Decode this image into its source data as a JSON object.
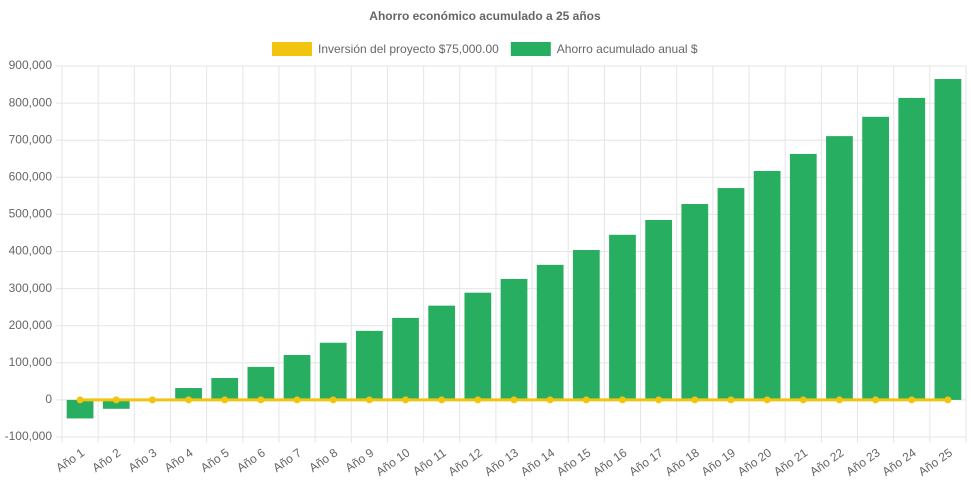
{
  "chart_data": {
    "type": "bar",
    "title": "Ahorro económico acumulado a 25 años",
    "categories": [
      "Año 1",
      "Año 2",
      "Año 3",
      "Año 4",
      "Año 5",
      "Año 6",
      "Año 7",
      "Año 8",
      "Año 9",
      "Año 10",
      "Año 11",
      "Año 12",
      "Año 13",
      "Año 14",
      "Año 15",
      "Año 16",
      "Año 17",
      "Año 18",
      "Año 19",
      "Año 20",
      "Año 21",
      "Año 22",
      "Año 23",
      "Año 24",
      "Año 25"
    ],
    "series": [
      {
        "name": "Inversión del proyecto $75,000.00",
        "type": "line",
        "color": "#f1c40f",
        "values": [
          0,
          0,
          0,
          0,
          0,
          0,
          0,
          0,
          0,
          0,
          0,
          0,
          0,
          0,
          0,
          0,
          0,
          0,
          0,
          0,
          0,
          0,
          0,
          0,
          0
        ]
      },
      {
        "name": "Ahorro acumulado anual $",
        "type": "bar",
        "color": "#27ae60",
        "values": [
          -50000,
          -24000,
          3000,
          32000,
          59000,
          89000,
          121000,
          154000,
          186000,
          221000,
          254000,
          289000,
          326000,
          364000,
          404000,
          445000,
          485000,
          528000,
          571000,
          617000,
          663000,
          711000,
          763000,
          814000,
          865000
        ]
      }
    ],
    "ylim": [
      -100000,
      900000
    ],
    "yticks": [
      {
        "value": -100000,
        "label": "-100,000"
      },
      0,
      {
        "value": 100000,
        "label": "100,000"
      },
      {
        "value": 200000,
        "label": "200,000"
      },
      {
        "value": 300000,
        "label": "300,000"
      },
      {
        "value": 400000,
        "label": "400,000"
      },
      {
        "value": 500000,
        "label": "500,000"
      },
      {
        "value": 600000,
        "label": "600,000"
      },
      {
        "value": 700000,
        "label": "700,000"
      },
      {
        "value": 800000,
        "label": "800,000"
      },
      {
        "value": 900000,
        "label": "900,000"
      }
    ],
    "grid": true
  }
}
